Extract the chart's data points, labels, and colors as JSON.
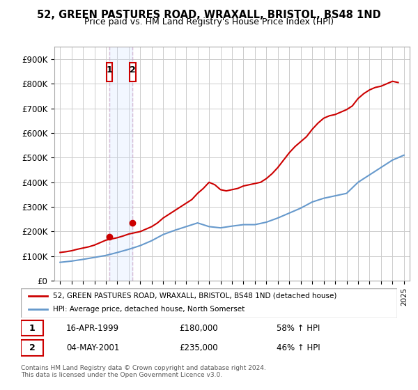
{
  "title": "52, GREEN PASTURES ROAD, WRAXALL, BRISTOL, BS48 1ND",
  "subtitle": "Price paid vs. HM Land Registry's House Price Index (HPI)",
  "ylabel_ticks": [
    "£0",
    "£100K",
    "£200K",
    "£300K",
    "£400K",
    "£500K",
    "£600K",
    "£700K",
    "£800K",
    "£900K"
  ],
  "ytick_values": [
    0,
    100000,
    200000,
    300000,
    400000,
    500000,
    600000,
    700000,
    800000,
    900000
  ],
  "ylim": [
    0,
    950000
  ],
  "legend_line1": "52, GREEN PASTURES ROAD, WRAXALL, BRISTOL, BS48 1ND (detached house)",
  "legend_line2": "HPI: Average price, detached house, North Somerset",
  "sale1_date": "16-APR-1999",
  "sale1_price": 180000,
  "sale1_label": "58% ↑ HPI",
  "sale2_date": "04-MAY-2001",
  "sale2_price": 235000,
  "sale2_label": "46% ↑ HPI",
  "footnote": "Contains HM Land Registry data © Crown copyright and database right 2024.\nThis data is licensed under the Open Government Licence v3.0.",
  "red_color": "#cc0000",
  "blue_color": "#6699cc",
  "sale_dot_color": "#cc0000",
  "highlight_box_color": "#cce0ff",
  "x_start_year": 1995,
  "x_end_year": 2025,
  "hpi_years": [
    1995,
    1996,
    1997,
    1998,
    1999,
    2000,
    2001,
    2002,
    2003,
    2004,
    2005,
    2006,
    2007,
    2008,
    2009,
    2010,
    2011,
    2012,
    2013,
    2014,
    2015,
    2016,
    2017,
    2018,
    2019,
    2020,
    2021,
    2022,
    2023,
    2024,
    2025
  ],
  "hpi_values": [
    75000,
    80000,
    87000,
    95000,
    103000,
    115000,
    128000,
    143000,
    163000,
    188000,
    205000,
    220000,
    235000,
    220000,
    215000,
    222000,
    228000,
    228000,
    238000,
    255000,
    275000,
    295000,
    320000,
    335000,
    345000,
    355000,
    400000,
    430000,
    460000,
    490000,
    510000
  ],
  "red_years": [
    1995.0,
    1995.5,
    1996.0,
    1996.5,
    1997.0,
    1997.5,
    1998.0,
    1998.5,
    1999.0,
    1999.5,
    2000.0,
    2000.5,
    2001.0,
    2001.5,
    2002.0,
    2002.5,
    2003.0,
    2003.5,
    2004.0,
    2004.5,
    2005.0,
    2005.5,
    2006.0,
    2006.5,
    2007.0,
    2007.5,
    2008.0,
    2008.5,
    2009.0,
    2009.5,
    2010.0,
    2010.5,
    2011.0,
    2011.5,
    2012.0,
    2012.5,
    2013.0,
    2013.5,
    2014.0,
    2014.5,
    2015.0,
    2015.5,
    2016.0,
    2016.5,
    2017.0,
    2017.5,
    2018.0,
    2018.5,
    2019.0,
    2019.5,
    2020.0,
    2020.5,
    2021.0,
    2021.5,
    2022.0,
    2022.5,
    2023.0,
    2023.5,
    2024.0,
    2024.5
  ],
  "red_values": [
    115000,
    118000,
    122000,
    128000,
    133000,
    138000,
    145000,
    155000,
    165000,
    170000,
    175000,
    182000,
    190000,
    195000,
    200000,
    210000,
    220000,
    235000,
    255000,
    270000,
    285000,
    300000,
    315000,
    330000,
    355000,
    375000,
    400000,
    390000,
    370000,
    365000,
    370000,
    375000,
    385000,
    390000,
    395000,
    400000,
    415000,
    435000,
    460000,
    490000,
    520000,
    545000,
    565000,
    585000,
    615000,
    640000,
    660000,
    670000,
    675000,
    685000,
    695000,
    710000,
    740000,
    760000,
    775000,
    785000,
    790000,
    800000,
    810000,
    805000
  ]
}
